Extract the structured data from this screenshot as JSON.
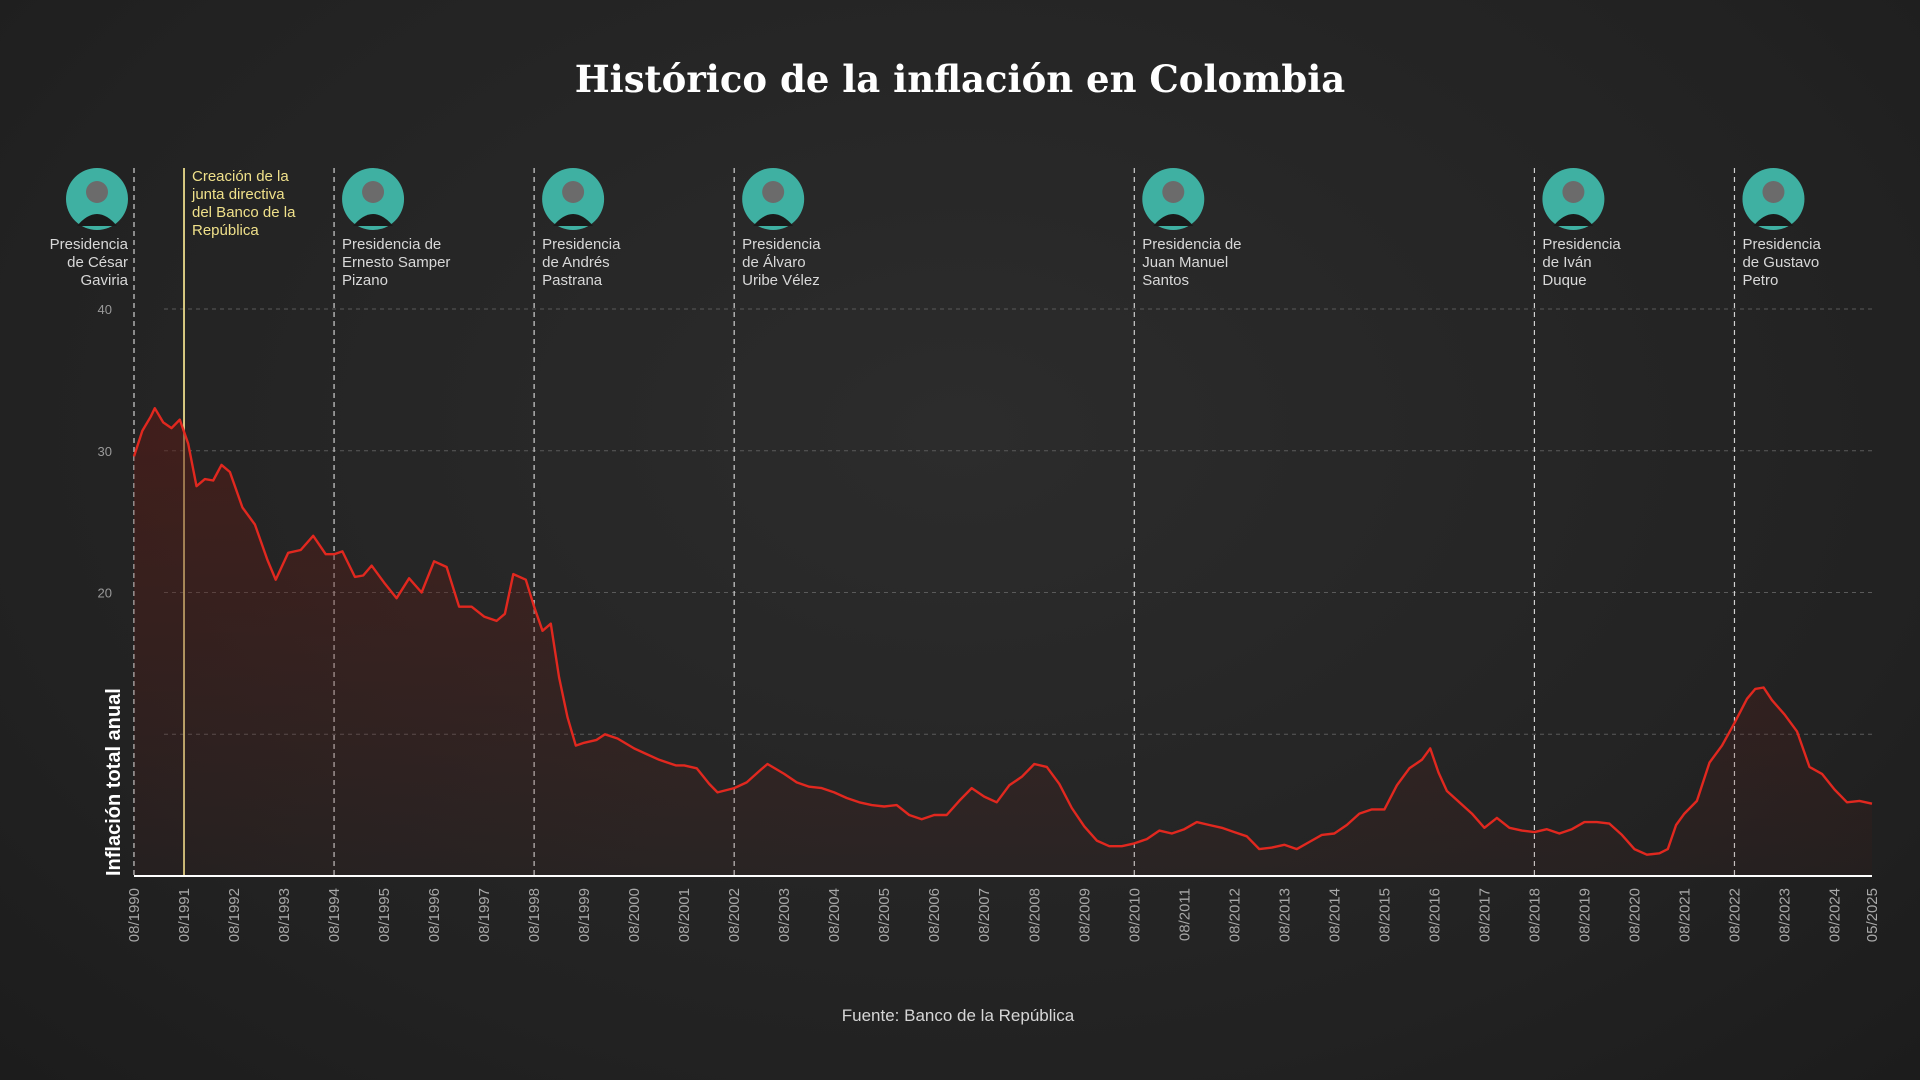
{
  "colors": {
    "line": "#e1281f",
    "area": "#5a1a14",
    "junta_line": "#e8d98a",
    "avatar_bg": "#3fb0a2",
    "grid": "#5a5a5a"
  },
  "chart_data": {
    "type": "line",
    "title": "Histórico de la inflación en Colombia",
    "ylabel": "Inflación total anual",
    "source": "Fuente: Banco de la República",
    "ylim": [
      0,
      40
    ],
    "yticks": [
      "10",
      "20",
      "30",
      "40"
    ],
    "ytick_labels_shown": [
      "20",
      "30",
      "40"
    ],
    "xlim": [
      "1990-08",
      "2025-05"
    ],
    "xticks": [
      "08/1990",
      "08/1991",
      "08/1992",
      "08/1993",
      "08/1994",
      "08/1995",
      "08/1996",
      "08/1997",
      "08/1998",
      "08/1999",
      "08/2000",
      "08/2001",
      "08/2002",
      "08/2003",
      "08/2004",
      "08/2005",
      "08/2006",
      "08/2007",
      "08/2008",
      "08/2009",
      "08/2010",
      "08/2011",
      "08/2012",
      "08/2013",
      "08/2014",
      "08/2015",
      "08/2016",
      "08/2017",
      "08/2018",
      "08/2019",
      "08/2020",
      "08/2021",
      "08/2022",
      "08/2023",
      "08/2024",
      "05/2025"
    ],
    "grid": true,
    "series": [
      {
        "values": [
          [
            "1990-08",
            29.6
          ],
          [
            "1990-10",
            31.4
          ],
          [
            "1990-12",
            32.4
          ],
          [
            "1991-01",
            33.0
          ],
          [
            "1991-03",
            32.0
          ],
          [
            "1991-05",
            31.6
          ],
          [
            "1991-07",
            32.2
          ],
          [
            "1991-09",
            30.5
          ],
          [
            "1991-11",
            27.5
          ],
          [
            "1992-01",
            28.0
          ],
          [
            "1992-03",
            27.9
          ],
          [
            "1992-05",
            29.0
          ],
          [
            "1992-07",
            28.5
          ],
          [
            "1992-10",
            26.0
          ],
          [
            "1993-01",
            24.8
          ],
          [
            "1993-04",
            22.3
          ],
          [
            "1993-06",
            20.9
          ],
          [
            "1993-09",
            22.8
          ],
          [
            "1993-12",
            23.0
          ],
          [
            "1994-03",
            24.0
          ],
          [
            "1994-06",
            22.7
          ],
          [
            "1994-08",
            22.7
          ],
          [
            "1994-10",
            22.9
          ],
          [
            "1995-01",
            21.1
          ],
          [
            "1995-03",
            21.2
          ],
          [
            "1995-05",
            21.9
          ],
          [
            "1995-08",
            20.7
          ],
          [
            "1995-11",
            19.6
          ],
          [
            "1996-02",
            21.0
          ],
          [
            "1996-05",
            20.0
          ],
          [
            "1996-08",
            22.2
          ],
          [
            "1996-11",
            21.8
          ],
          [
            "1997-02",
            19.0
          ],
          [
            "1997-05",
            19.0
          ],
          [
            "1997-08",
            18.3
          ],
          [
            "1997-11",
            18.0
          ],
          [
            "1998-01",
            18.5
          ],
          [
            "1998-03",
            21.3
          ],
          [
            "1998-06",
            20.9
          ],
          [
            "1998-08",
            19.0
          ],
          [
            "1998-10",
            17.3
          ],
          [
            "1998-12",
            17.8
          ],
          [
            "1999-02",
            14.0
          ],
          [
            "1999-04",
            11.2
          ],
          [
            "1999-06",
            9.2
          ],
          [
            "1999-08",
            9.4
          ],
          [
            "1999-11",
            9.6
          ],
          [
            "2000-01",
            10.0
          ],
          [
            "2000-04",
            9.7
          ],
          [
            "2000-08",
            9.0
          ],
          [
            "2000-11",
            8.6
          ],
          [
            "2001-02",
            8.2
          ],
          [
            "2001-06",
            7.8
          ],
          [
            "2001-08",
            7.8
          ],
          [
            "2001-11",
            7.6
          ],
          [
            "2002-02",
            6.5
          ],
          [
            "2002-04",
            5.9
          ],
          [
            "2002-08",
            6.2
          ],
          [
            "2002-11",
            6.6
          ],
          [
            "2003-02",
            7.4
          ],
          [
            "2003-04",
            7.9
          ],
          [
            "2003-08",
            7.2
          ],
          [
            "2003-11",
            6.6
          ],
          [
            "2004-02",
            6.3
          ],
          [
            "2004-05",
            6.2
          ],
          [
            "2004-08",
            5.9
          ],
          [
            "2004-11",
            5.5
          ],
          [
            "2005-02",
            5.2
          ],
          [
            "2005-05",
            5.0
          ],
          [
            "2005-08",
            4.9
          ],
          [
            "2005-11",
            5.0
          ],
          [
            "2006-02",
            4.3
          ],
          [
            "2006-05",
            4.0
          ],
          [
            "2006-08",
            4.3
          ],
          [
            "2006-11",
            4.3
          ],
          [
            "2007-02",
            5.3
          ],
          [
            "2007-05",
            6.2
          ],
          [
            "2007-08",
            5.6
          ],
          [
            "2007-11",
            5.2
          ],
          [
            "2008-02",
            6.4
          ],
          [
            "2008-05",
            7.0
          ],
          [
            "2008-08",
            7.9
          ],
          [
            "2008-11",
            7.7
          ],
          [
            "2009-02",
            6.5
          ],
          [
            "2009-05",
            4.8
          ],
          [
            "2009-08",
            3.5
          ],
          [
            "2009-11",
            2.5
          ],
          [
            "2010-02",
            2.1
          ],
          [
            "2010-05",
            2.1
          ],
          [
            "2010-08",
            2.3
          ],
          [
            "2010-11",
            2.6
          ],
          [
            "2011-02",
            3.2
          ],
          [
            "2011-05",
            3.0
          ],
          [
            "2011-08",
            3.3
          ],
          [
            "2011-11",
            3.8
          ],
          [
            "2012-02",
            3.6
          ],
          [
            "2012-05",
            3.4
          ],
          [
            "2012-08",
            3.1
          ],
          [
            "2012-11",
            2.8
          ],
          [
            "2013-02",
            1.9
          ],
          [
            "2013-05",
            2.0
          ],
          [
            "2013-08",
            2.2
          ],
          [
            "2013-11",
            1.9
          ],
          [
            "2014-02",
            2.4
          ],
          [
            "2014-05",
            2.9
          ],
          [
            "2014-08",
            3.0
          ],
          [
            "2014-11",
            3.6
          ],
          [
            "2015-02",
            4.4
          ],
          [
            "2015-05",
            4.7
          ],
          [
            "2015-08",
            4.7
          ],
          [
            "2015-11",
            6.4
          ],
          [
            "2016-02",
            7.6
          ],
          [
            "2016-05",
            8.2
          ],
          [
            "2016-07",
            9.0
          ],
          [
            "2016-09",
            7.3
          ],
          [
            "2016-11",
            6.0
          ],
          [
            "2017-02",
            5.2
          ],
          [
            "2017-05",
            4.4
          ],
          [
            "2017-08",
            3.4
          ],
          [
            "2017-11",
            4.1
          ],
          [
            "2018-02",
            3.4
          ],
          [
            "2018-05",
            3.2
          ],
          [
            "2018-08",
            3.1
          ],
          [
            "2018-11",
            3.3
          ],
          [
            "2019-02",
            3.0
          ],
          [
            "2019-05",
            3.3
          ],
          [
            "2019-08",
            3.8
          ],
          [
            "2019-11",
            3.8
          ],
          [
            "2020-02",
            3.7
          ],
          [
            "2020-05",
            2.9
          ],
          [
            "2020-08",
            1.9
          ],
          [
            "2020-11",
            1.5
          ],
          [
            "2021-02",
            1.6
          ],
          [
            "2021-04",
            1.9
          ],
          [
            "2021-06",
            3.6
          ],
          [
            "2021-08",
            4.4
          ],
          [
            "2021-11",
            5.3
          ],
          [
            "2022-02",
            8.0
          ],
          [
            "2022-05",
            9.2
          ],
          [
            "2022-08",
            10.8
          ],
          [
            "2022-11",
            12.5
          ],
          [
            "2023-01",
            13.2
          ],
          [
            "2023-03",
            13.3
          ],
          [
            "2023-05",
            12.4
          ],
          [
            "2023-08",
            11.4
          ],
          [
            "2023-11",
            10.2
          ],
          [
            "2024-02",
            7.7
          ],
          [
            "2024-05",
            7.2
          ],
          [
            "2024-08",
            6.1
          ],
          [
            "2024-11",
            5.2
          ],
          [
            "2025-02",
            5.3
          ],
          [
            "2025-05",
            5.1
          ]
        ]
      }
    ],
    "events": [
      {
        "date": "1991-08",
        "label": [
          "Creación de la",
          "junta directiva",
          "del Banco de la",
          "República"
        ]
      }
    ],
    "presidencies": [
      {
        "start": "1990-08",
        "label": [
          "Presidencia",
          "de César",
          "Gaviria"
        ],
        "align": "right"
      },
      {
        "start": "1994-08",
        "label": [
          "Presidencia de",
          "Ernesto Samper",
          "Pizano"
        ],
        "align": "left"
      },
      {
        "start": "1998-08",
        "label": [
          "Presidencia",
          "de Andrés",
          "Pastrana"
        ],
        "align": "left"
      },
      {
        "start": "2002-08",
        "label": [
          "Presidencia",
          "de Álvaro",
          "Uribe Vélez"
        ],
        "align": "left"
      },
      {
        "start": "2010-08",
        "label": [
          "Presidencia de",
          "Juan Manuel",
          "Santos"
        ],
        "align": "left"
      },
      {
        "start": "2018-08",
        "label": [
          "Presidencia",
          "de Iván",
          "Duque"
        ],
        "align": "left"
      },
      {
        "start": "2022-08",
        "label": [
          "Presidencia",
          "de Gustavo",
          "Petro"
        ],
        "align": "left"
      }
    ]
  }
}
